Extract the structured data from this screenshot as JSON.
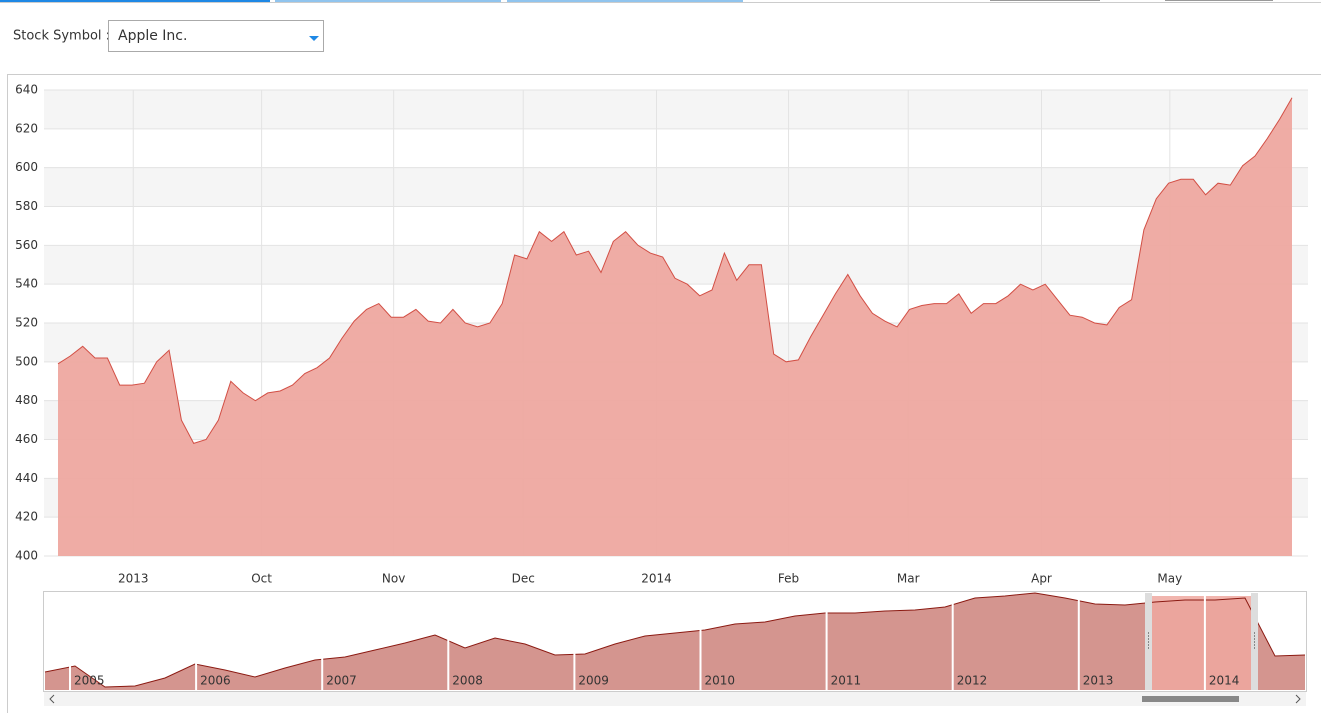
{
  "form": {
    "label": "Stock Symbol :",
    "selected": "Apple Inc."
  },
  "chart_data": {
    "type": "area",
    "color": "#eea8a0",
    "line_color": "#d24f45",
    "grid": true,
    "values": [
      499,
      503,
      508,
      502,
      502,
      488,
      488,
      489,
      500,
      506,
      470,
      458,
      460,
      470,
      490,
      484,
      480,
      484,
      485,
      488,
      494,
      497,
      502,
      512,
      521,
      527,
      530,
      523,
      523,
      527,
      521,
      520,
      527,
      520,
      518,
      520,
      530,
      555,
      553,
      567,
      562,
      567,
      555,
      557,
      546,
      562,
      567,
      560,
      556,
      554,
      543,
      540,
      534,
      537,
      556,
      542,
      550,
      550,
      504,
      500,
      501,
      513,
      524,
      535,
      545,
      534,
      525,
      521,
      518,
      527,
      529,
      530,
      530,
      535,
      525,
      530,
      530,
      534,
      540,
      537,
      540,
      532,
      524,
      523,
      520,
      519,
      528,
      532,
      568,
      584,
      592,
      594,
      594,
      586,
      592,
      591,
      601,
      606,
      615,
      625,
      636
    ],
    "xlim": [
      0,
      100
    ],
    "xticks": [
      {
        "value": 6.1,
        "label": "2013"
      },
      {
        "value": 16.5,
        "label": "Oct"
      },
      {
        "value": 27.2,
        "label": "Nov"
      },
      {
        "value": 37.7,
        "label": "Dec"
      },
      {
        "value": 48.5,
        "label": "2014"
      },
      {
        "value": 59.2,
        "label": "Feb"
      },
      {
        "value": 68.9,
        "label": "Mar"
      },
      {
        "value": 79.7,
        "label": "Apr"
      },
      {
        "value": 90.1,
        "label": "May"
      }
    ],
    "ylim": [
      400,
      640
    ],
    "yticks": [
      400,
      420,
      440,
      460,
      480,
      500,
      520,
      540,
      560,
      580,
      600,
      620,
      640
    ]
  },
  "navigator": {
    "years": [
      "2005",
      "2006",
      "2007",
      "2008",
      "2009",
      "2010",
      "2011",
      "2012",
      "2013",
      "2014"
    ],
    "values": [
      18,
      24,
      3,
      4,
      12,
      26,
      20,
      13,
      22,
      30,
      33,
      40,
      47,
      55,
      42,
      52,
      46,
      35,
      36,
      46,
      54,
      57,
      60,
      66,
      68,
      74,
      77,
      77,
      79,
      80,
      83,
      92,
      94,
      97,
      92,
      86,
      85,
      88,
      90,
      90,
      92,
      34,
      35
    ]
  }
}
